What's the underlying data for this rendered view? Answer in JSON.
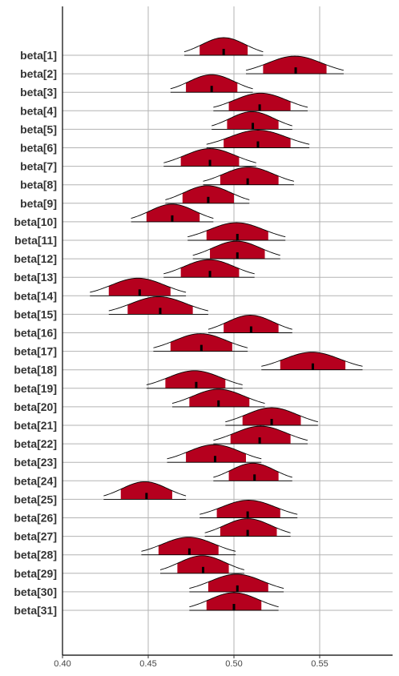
{
  "chart_data": {
    "type": "ridgeline",
    "categories": [
      "beta[1]",
      "beta[2]",
      "beta[3]",
      "beta[4]",
      "beta[5]",
      "beta[6]",
      "beta[7]",
      "beta[8]",
      "beta[9]",
      "beta[10]",
      "beta[11]",
      "beta[12]",
      "beta[13]",
      "beta[14]",
      "beta[15]",
      "beta[16]",
      "beta[17]",
      "beta[18]",
      "beta[19]",
      "beta[20]",
      "beta[21]",
      "beta[22]",
      "beta[23]",
      "beta[24]",
      "beta[25]",
      "beta[26]",
      "beta[27]",
      "beta[28]",
      "beta[29]",
      "beta[30]",
      "beta[31]"
    ],
    "medians": [
      0.494,
      0.536,
      0.487,
      0.515,
      0.511,
      0.514,
      0.486,
      0.508,
      0.485,
      0.464,
      0.502,
      0.502,
      0.486,
      0.445,
      0.457,
      0.51,
      0.481,
      0.546,
      0.478,
      0.491,
      0.522,
      0.515,
      0.489,
      0.512,
      0.449,
      0.508,
      0.508,
      0.474,
      0.482,
      0.502,
      0.5
    ],
    "inner_interval": [
      [
        0.48,
        0.508
      ],
      [
        0.517,
        0.554
      ],
      [
        0.472,
        0.502
      ],
      [
        0.497,
        0.533
      ],
      [
        0.496,
        0.526
      ],
      [
        0.494,
        0.533
      ],
      [
        0.469,
        0.503
      ],
      [
        0.492,
        0.526
      ],
      [
        0.47,
        0.5
      ],
      [
        0.449,
        0.48
      ],
      [
        0.484,
        0.52
      ],
      [
        0.486,
        0.518
      ],
      [
        0.469,
        0.503
      ],
      [
        0.427,
        0.463
      ],
      [
        0.438,
        0.476
      ],
      [
        0.494,
        0.526
      ],
      [
        0.463,
        0.499
      ],
      [
        0.527,
        0.565
      ],
      [
        0.46,
        0.495
      ],
      [
        0.474,
        0.509
      ],
      [
        0.505,
        0.539
      ],
      [
        0.498,
        0.533
      ],
      [
        0.472,
        0.507
      ],
      [
        0.497,
        0.526
      ],
      [
        0.434,
        0.464
      ],
      [
        0.49,
        0.527
      ],
      [
        0.492,
        0.525
      ],
      [
        0.456,
        0.491
      ],
      [
        0.467,
        0.497
      ],
      [
        0.485,
        0.52
      ],
      [
        0.484,
        0.516
      ]
    ],
    "outer_interval": [
      [
        0.471,
        0.517
      ],
      [
        0.507,
        0.564
      ],
      [
        0.463,
        0.511
      ],
      [
        0.488,
        0.543
      ],
      [
        0.487,
        0.534
      ],
      [
        0.484,
        0.544
      ],
      [
        0.459,
        0.513
      ],
      [
        0.482,
        0.535
      ],
      [
        0.46,
        0.509
      ],
      [
        0.44,
        0.488
      ],
      [
        0.473,
        0.53
      ],
      [
        0.476,
        0.527
      ],
      [
        0.459,
        0.512
      ],
      [
        0.416,
        0.472
      ],
      [
        0.427,
        0.485
      ],
      [
        0.485,
        0.534
      ],
      [
        0.453,
        0.508
      ],
      [
        0.516,
        0.575
      ],
      [
        0.449,
        0.505
      ],
      [
        0.464,
        0.518
      ],
      [
        0.495,
        0.549
      ],
      [
        0.488,
        0.543
      ],
      [
        0.461,
        0.516
      ],
      [
        0.488,
        0.534
      ],
      [
        0.424,
        0.472
      ],
      [
        0.48,
        0.537
      ],
      [
        0.483,
        0.533
      ],
      [
        0.446,
        0.501
      ],
      [
        0.457,
        0.506
      ],
      [
        0.474,
        0.529
      ],
      [
        0.474,
        0.526
      ]
    ],
    "xticks": [
      0.4,
      0.45,
      0.5,
      0.55
    ],
    "xtick_labels": [
      "0.40",
      "0.45",
      "0.50",
      "0.55"
    ],
    "xlim": [
      0.4,
      0.59
    ],
    "grid": true,
    "title": "",
    "xlabel": "",
    "ylabel": "",
    "colors": {
      "fill": "#b5001e",
      "outline": "#000000",
      "grid": "#b3b3b3",
      "axis": "#000000"
    }
  }
}
